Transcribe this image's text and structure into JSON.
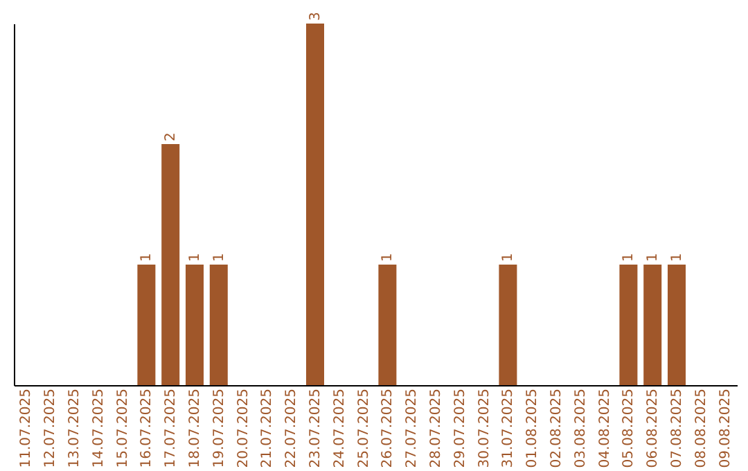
{
  "chart_data": {
    "type": "bar",
    "categories": [
      "11.07.2025",
      "12.07.2025",
      "13.07.2025",
      "14.07.2025",
      "15.07.2025",
      "16.07.2025",
      "17.07.2025",
      "18.07.2025",
      "19.07.2025",
      "20.07.2025",
      "21.07.2025",
      "22.07.2025",
      "23.07.2025",
      "24.07.2025",
      "25.07.2025",
      "26.07.2025",
      "27.07.2025",
      "28.07.2025",
      "29.07.2025",
      "30.07.2025",
      "31.07.2025",
      "01.08.2025",
      "02.08.2025",
      "03.08.2025",
      "04.08.2025",
      "05.08.2025",
      "06.08.2025",
      "07.08.2025",
      "08.08.2025",
      "09.08.2025"
    ],
    "values": [
      0,
      0,
      0,
      0,
      0,
      1,
      2,
      1,
      1,
      0,
      0,
      0,
      3,
      0,
      0,
      1,
      0,
      0,
      0,
      0,
      1,
      0,
      0,
      0,
      0,
      1,
      1,
      1,
      0,
      0
    ],
    "value_labels": [
      null,
      null,
      null,
      null,
      null,
      "1",
      "2",
      "1",
      "1",
      null,
      null,
      null,
      "3",
      null,
      null,
      "1",
      null,
      null,
      null,
      null,
      "1",
      null,
      null,
      null,
      null,
      "1",
      "1",
      "1",
      null,
      null
    ],
    "color": "#a0572a"
  }
}
